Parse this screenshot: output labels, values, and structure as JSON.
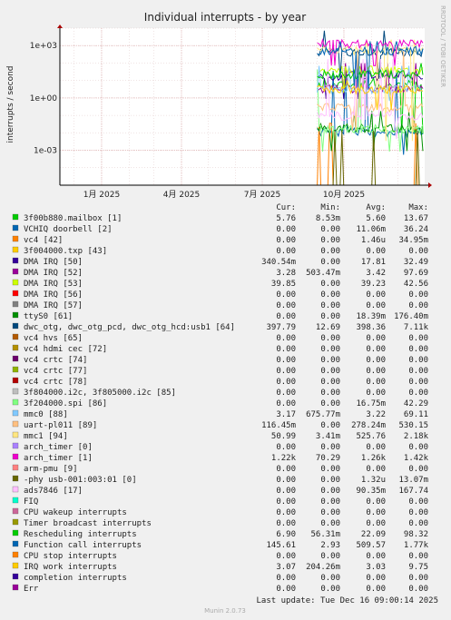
{
  "chart_data": {
    "type": "line",
    "title": "Individual interrupts - by year",
    "ylabel": "interrupts / second",
    "yscale": "log",
    "ylim": [
      1e-05,
      10000
    ],
    "yticks": [
      {
        "value": 1000,
        "label": "1e+03"
      },
      {
        "value": 1,
        "label": "1e+00"
      },
      {
        "value": 0.001,
        "label": "1e-03"
      }
    ],
    "xlim": [
      "2024-11-15",
      "2025-12-31"
    ],
    "xticks": [
      {
        "date": "2025-01-01",
        "label": "1月 2025"
      },
      {
        "date": "2025-04-01",
        "label": "4月 2025"
      },
      {
        "date": "2025-07-01",
        "label": "7月 2025"
      },
      {
        "date": "2025-10-01",
        "label": "10月 2025"
      }
    ],
    "data_start": "2025-09-01",
    "grid": true,
    "legend_position": "below"
  },
  "legend": {
    "header": {
      "cur": "Cur:",
      "min": "Min:",
      "avg": "Avg:",
      "max": "Max:"
    },
    "rows": [
      {
        "label": "3f00b880.mailbox [1]",
        "color": "#00cc00",
        "cur": "5.76",
        "min": "8.53m",
        "avg": "5.60",
        "max": "13.67"
      },
      {
        "label": "VCHIQ doorbell [2]",
        "color": "#0066b3",
        "cur": "0.00",
        "min": "0.00",
        "avg": "11.06m",
        "max": "36.24"
      },
      {
        "label": "vc4 [42]",
        "color": "#ff8000",
        "cur": "0.00",
        "min": "0.00",
        "avg": "1.46u",
        "max": "34.95m"
      },
      {
        "label": "3f004000.txp [43]",
        "color": "#ffcc00",
        "cur": "0.00",
        "min": "0.00",
        "avg": "0.00",
        "max": "0.00"
      },
      {
        "label": "DMA IRQ [50]",
        "color": "#330099",
        "cur": "340.54m",
        "min": "0.00",
        "avg": "17.81",
        "max": "32.49"
      },
      {
        "label": "DMA IRQ [52]",
        "color": "#990099",
        "cur": "3.28",
        "min": "503.47m",
        "avg": "3.42",
        "max": "97.69"
      },
      {
        "label": "DMA IRQ [53]",
        "color": "#ccff00",
        "cur": "39.85",
        "min": "0.00",
        "avg": "39.23",
        "max": "42.56"
      },
      {
        "label": "DMA IRQ [56]",
        "color": "#ff0000",
        "cur": "0.00",
        "min": "0.00",
        "avg": "0.00",
        "max": "0.00"
      },
      {
        "label": "DMA IRQ [57]",
        "color": "#808080",
        "cur": "0.00",
        "min": "0.00",
        "avg": "0.00",
        "max": "0.00"
      },
      {
        "label": "ttyS0 [61]",
        "color": "#008f00",
        "cur": "0.00",
        "min": "0.00",
        "avg": "18.39m",
        "max": "176.40m"
      },
      {
        "label": "dwc_otg, dwc_otg_pcd, dwc_otg_hcd:usb1 [64]",
        "color": "#00487d",
        "cur": "397.79",
        "min": "12.69",
        "avg": "398.36",
        "max": "7.11k"
      },
      {
        "label": "vc4 hvs [65]",
        "color": "#b35a00",
        "cur": "0.00",
        "min": "0.00",
        "avg": "0.00",
        "max": "0.00"
      },
      {
        "label": "vc4 hdmi cec [72]",
        "color": "#b38f00",
        "cur": "0.00",
        "min": "0.00",
        "avg": "0.00",
        "max": "0.00"
      },
      {
        "label": "vc4 crtc [74]",
        "color": "#6b006b",
        "cur": "0.00",
        "min": "0.00",
        "avg": "0.00",
        "max": "0.00"
      },
      {
        "label": "vc4 crtc [77]",
        "color": "#8fb300",
        "cur": "0.00",
        "min": "0.00",
        "avg": "0.00",
        "max": "0.00"
      },
      {
        "label": "vc4 crtc [78]",
        "color": "#b30000",
        "cur": "0.00",
        "min": "0.00",
        "avg": "0.00",
        "max": "0.00"
      },
      {
        "label": "3f804000.i2c, 3f805000.i2c [85]",
        "color": "#bebebe",
        "cur": "0.00",
        "min": "0.00",
        "avg": "0.00",
        "max": "0.00"
      },
      {
        "label": "3f204000.spi [86]",
        "color": "#80ff80",
        "cur": "0.00",
        "min": "0.00",
        "avg": "16.75m",
        "max": "42.29"
      },
      {
        "label": "mmc0 [88]",
        "color": "#80c9ff",
        "cur": "3.17",
        "min": "675.77m",
        "avg": "3.22",
        "max": "69.11"
      },
      {
        "label": "uart-pl011 [89]",
        "color": "#ffc080",
        "cur": "116.45m",
        "min": "0.00",
        "avg": "278.24m",
        "max": "530.15"
      },
      {
        "label": "mmc1 [94]",
        "color": "#ffe680",
        "cur": "50.99",
        "min": "3.41m",
        "avg": "525.76",
        "max": "2.18k"
      },
      {
        "label": "arch_timer [0]",
        "color": "#aa80ff",
        "cur": "0.00",
        "min": "0.00",
        "avg": "0.00",
        "max": "0.00"
      },
      {
        "label": "arch_timer [1]",
        "color": "#ee00cc",
        "cur": "1.22k",
        "min": "70.29",
        "avg": "1.26k",
        "max": "1.42k"
      },
      {
        "label": "arm-pmu [9]",
        "color": "#ff8080",
        "cur": "0.00",
        "min": "0.00",
        "avg": "0.00",
        "max": "0.00"
      },
      {
        "label": "-phy       usb-001:003:01 [0]",
        "color": "#666600",
        "cur": "0.00",
        "min": "0.00",
        "avg": "1.32u",
        "max": "13.07m"
      },
      {
        "label": "ads7846 [17]",
        "color": "#ffbfff",
        "cur": "0.00",
        "min": "0.00",
        "avg": "90.35m",
        "max": "167.74"
      },
      {
        "label": "FIQ",
        "color": "#00ffcc",
        "cur": "0.00",
        "min": "0.00",
        "avg": "0.00",
        "max": "0.00"
      },
      {
        "label": "CPU wakeup interrupts",
        "color": "#cc6699",
        "cur": "0.00",
        "min": "0.00",
        "avg": "0.00",
        "max": "0.00"
      },
      {
        "label": "Timer broadcast interrupts",
        "color": "#999900",
        "cur": "0.00",
        "min": "0.00",
        "avg": "0.00",
        "max": "0.00"
      },
      {
        "label": "Rescheduling interrupts",
        "color": "#00cc00",
        "cur": "6.90",
        "min": "56.31m",
        "avg": "22.09",
        "max": "98.32"
      },
      {
        "label": "Function call interrupts",
        "color": "#0066b3",
        "cur": "145.61",
        "min": "2.93",
        "avg": "509.57",
        "max": "1.77k"
      },
      {
        "label": "CPU stop interrupts",
        "color": "#ff8000",
        "cur": "0.00",
        "min": "0.00",
        "avg": "0.00",
        "max": "0.00"
      },
      {
        "label": "IRQ work interrupts",
        "color": "#ffcc00",
        "cur": "3.07",
        "min": "204.26m",
        "avg": "3.03",
        "max": "9.75"
      },
      {
        "label": "completion interrupts",
        "color": "#330099",
        "cur": "0.00",
        "min": "0.00",
        "avg": "0.00",
        "max": "0.00"
      },
      {
        "label": "Err",
        "color": "#990099",
        "cur": "0.00",
        "min": "0.00",
        "avg": "0.00",
        "max": "0.00"
      }
    ]
  },
  "footer": {
    "last_update": "Last update: Tue Dec 16 09:00:14 2025",
    "munin": "Munin 2.0.73",
    "rrdtool": "RRDTOOL / TOBI OETIKER"
  }
}
